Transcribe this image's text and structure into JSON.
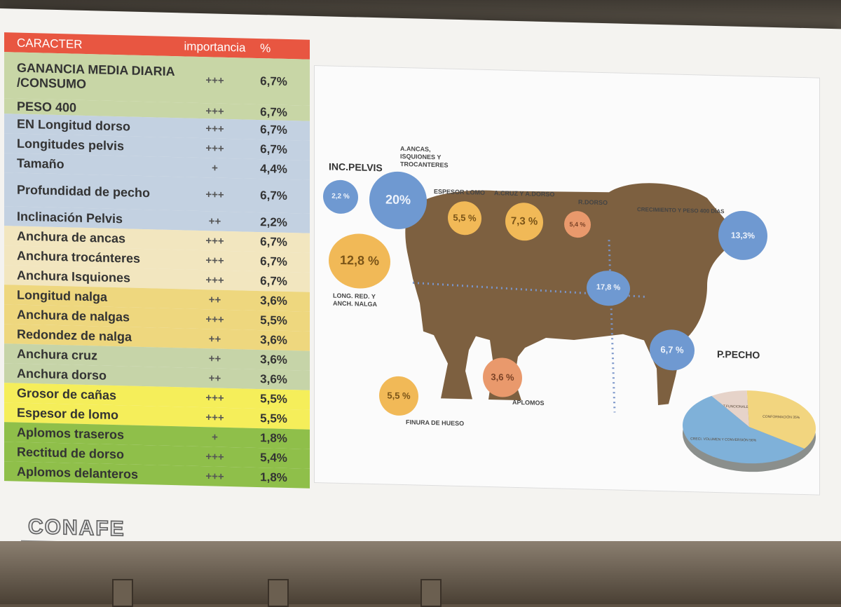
{
  "table": {
    "header": {
      "caracter": "CARACTER",
      "importancia": "importancia",
      "pct": "%"
    },
    "rows": [
      {
        "caracter": "GANANCIA MEDIA DIARIA /CONSUMO",
        "importancia": "+++",
        "pct": "6,7%",
        "color": "#c8d6a6"
      },
      {
        "caracter": "PESO 400",
        "importancia": "+++",
        "pct": "6,7%",
        "color": "#c8d6a6"
      },
      {
        "caracter": "EN Longitud dorso",
        "importancia": "+++",
        "pct": "6,7%",
        "color": "#c3d1e1"
      },
      {
        "caracter": "Longitudes pelvis",
        "importancia": "+++",
        "pct": "6,7%",
        "color": "#c3d1e1"
      },
      {
        "caracter": "Tamaño",
        "importancia": "+",
        "pct": "4,4%",
        "color": "#c3d1e1"
      },
      {
        "caracter": "Profundidad de pecho",
        "importancia": "+++",
        "pct": "6,7%",
        "color": "#c3d1e1"
      },
      {
        "caracter": "Inclinación Pelvis",
        "importancia": "++",
        "pct": "2,2%",
        "color": "#c3d1e1"
      },
      {
        "caracter": "Anchura de ancas",
        "importancia": "+++",
        "pct": "6,7%",
        "color": "#f2e6bf"
      },
      {
        "caracter": "Anchura trocánteres",
        "importancia": "+++",
        "pct": "6,7%",
        "color": "#f2e6bf"
      },
      {
        "caracter": "Anchura Isquiones",
        "importancia": "+++",
        "pct": "6,7%",
        "color": "#f2e6bf"
      },
      {
        "caracter": "Longitud nalga",
        "importancia": "++",
        "pct": "3,6%",
        "color": "#eed77e"
      },
      {
        "caracter": "Anchura de nalgas",
        "importancia": "+++",
        "pct": "5,5%",
        "color": "#eed77e"
      },
      {
        "caracter": "Redondez de nalga",
        "importancia": "++",
        "pct": "3,6%",
        "color": "#eed77e"
      },
      {
        "caracter": "Anchura cruz",
        "importancia": "++",
        "pct": "3,6%",
        "color": "#c6d4a8"
      },
      {
        "caracter": "Anchura dorso",
        "importancia": "++",
        "pct": "3,6%",
        "color": "#c6d4a8"
      },
      {
        "caracter": "Grosor de cañas",
        "importancia": "+++",
        "pct": "5,5%",
        "color": "#f5ee5a"
      },
      {
        "caracter": "Espesor de lomo",
        "importancia": "+++",
        "pct": "5,5%",
        "color": "#f5ee5a"
      },
      {
        "caracter": "Aplomos traseros",
        "importancia": "+",
        "pct": "1,8%",
        "color": "#8fbf4a"
      },
      {
        "caracter": "Rectitud de dorso",
        "importancia": "+++",
        "pct": "5,4%",
        "color": "#8fbf4a"
      },
      {
        "caracter": "Aplomos delanteros",
        "importancia": "+++",
        "pct": "1,8%",
        "color": "#8fbf4a"
      }
    ]
  },
  "diagram": {
    "bubbles": {
      "inc_pelvis": "2,2 %",
      "ancas": "20%",
      "espesor_lomo": "5,5 %",
      "cruz_dorso": "7,3 %",
      "r_dorso": "5,4 %",
      "crecimiento": "13,3%",
      "nalga": "12,8 %",
      "centro": "17,8 %",
      "pecho": "6,7 %",
      "aplomos": "3,6 %",
      "finura": "5,5 %"
    },
    "labels": {
      "inc_pelvis": "INC.PELVIS",
      "ancas": "A.ANCAS, ISQUIONES Y TROCANTERES",
      "espesor_lomo": "ESPESOR LOMO",
      "cruz_dorso": "A.CRUZ Y A.DORSO",
      "r_dorso": "R.DORSO",
      "crecimiento": "CRECIMIENTO Y PESO 400 DÍAS",
      "nalga": "LONG. RED. Y ANCH. NALGA",
      "aplomos": "APLOMOS",
      "finura": "FINURA DE HUESO",
      "pecho": "P.PECHO"
    },
    "pie": [
      {
        "label": "APT.FUNCIONALES 9%",
        "value": 9,
        "color": "#e6d3c9"
      },
      {
        "label": "CONFORMACIÓN 35%",
        "value": 35,
        "color": "#f2d57f"
      },
      {
        "label": "CRECI. VOLUMEN Y CONVERSIÓN 56%",
        "value": 56,
        "color": "#7fb1d9"
      }
    ]
  },
  "brand": {
    "logo": "CONAFE"
  }
}
